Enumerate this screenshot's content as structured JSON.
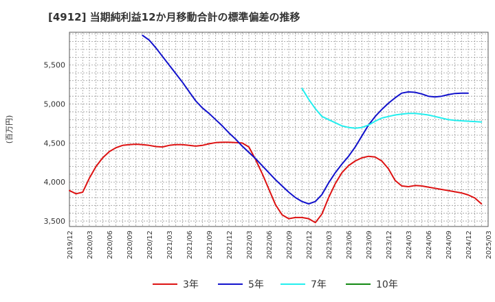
{
  "chart_data": {
    "type": "line",
    "title": "[4912]  当期純利益12か月移動合計の標準偏差の推移",
    "ylabel": "(百万円)",
    "xlabel": "",
    "ylim": [
      3430,
      5920
    ],
    "yticks": [
      3500,
      4000,
      4500,
      5000,
      5500
    ],
    "ytick_labels": [
      "3,500",
      "4,000",
      "4,500",
      "5,000",
      "5,500"
    ],
    "x_start": "2019-12",
    "x_end": "2025-03",
    "xtick_labels": [
      "2019/12",
      "2020/03",
      "2020/06",
      "2020/09",
      "2020/12",
      "2021/03",
      "2021/06",
      "2021/09",
      "2021/12",
      "2022/03",
      "2022/06",
      "2022/09",
      "2022/12",
      "2023/03",
      "2023/06",
      "2023/09",
      "2023/12",
      "2024/03",
      "2024/06",
      "2024/09",
      "2024/12",
      "2025/03"
    ],
    "grid": true,
    "legend_position": "bottom",
    "series": [
      {
        "name": "3年",
        "color": "#dd1111",
        "start": "2019-12",
        "values": [
          3890,
          3850,
          3870,
          4050,
          4200,
          4310,
          4390,
          4440,
          4470,
          4480,
          4485,
          4480,
          4470,
          4455,
          4450,
          4470,
          4480,
          4480,
          4470,
          4460,
          4470,
          4490,
          4505,
          4510,
          4510,
          4505,
          4500,
          4450,
          4290,
          4110,
          3910,
          3710,
          3580,
          3530,
          3545,
          3545,
          3530,
          3480,
          3590,
          3800,
          3980,
          4120,
          4210,
          4270,
          4310,
          4330,
          4320,
          4270,
          4170,
          4020,
          3950,
          3940,
          3955,
          3950,
          3935,
          3920,
          3905,
          3890,
          3875,
          3860,
          3835,
          3795,
          3720
        ]
      },
      {
        "name": "5年",
        "color": "#1111cc",
        "start": "2020-11",
        "values": [
          5880,
          5820,
          5720,
          5610,
          5500,
          5390,
          5280,
          5160,
          5040,
          4950,
          4880,
          4800,
          4720,
          4630,
          4550,
          4460,
          4380,
          4300,
          4210,
          4120,
          4030,
          3950,
          3870,
          3800,
          3750,
          3720,
          3750,
          3840,
          3990,
          4120,
          4230,
          4330,
          4450,
          4590,
          4730,
          4840,
          4930,
          5010,
          5080,
          5140,
          5155,
          5150,
          5130,
          5100,
          5090,
          5100,
          5120,
          5135,
          5140,
          5140
        ]
      },
      {
        "name": "7年",
        "color": "#22eeee",
        "start": "2022-11",
        "values": [
          5200,
          5060,
          4940,
          4840,
          4800,
          4760,
          4720,
          4700,
          4690,
          4700,
          4730,
          4780,
          4820,
          4840,
          4860,
          4870,
          4880,
          4880,
          4870,
          4860,
          4840,
          4820,
          4800,
          4790,
          4785,
          4780,
          4775,
          4770
        ]
      },
      {
        "name": "10年",
        "color": "#118811",
        "start": "2022-11",
        "values": []
      }
    ]
  }
}
